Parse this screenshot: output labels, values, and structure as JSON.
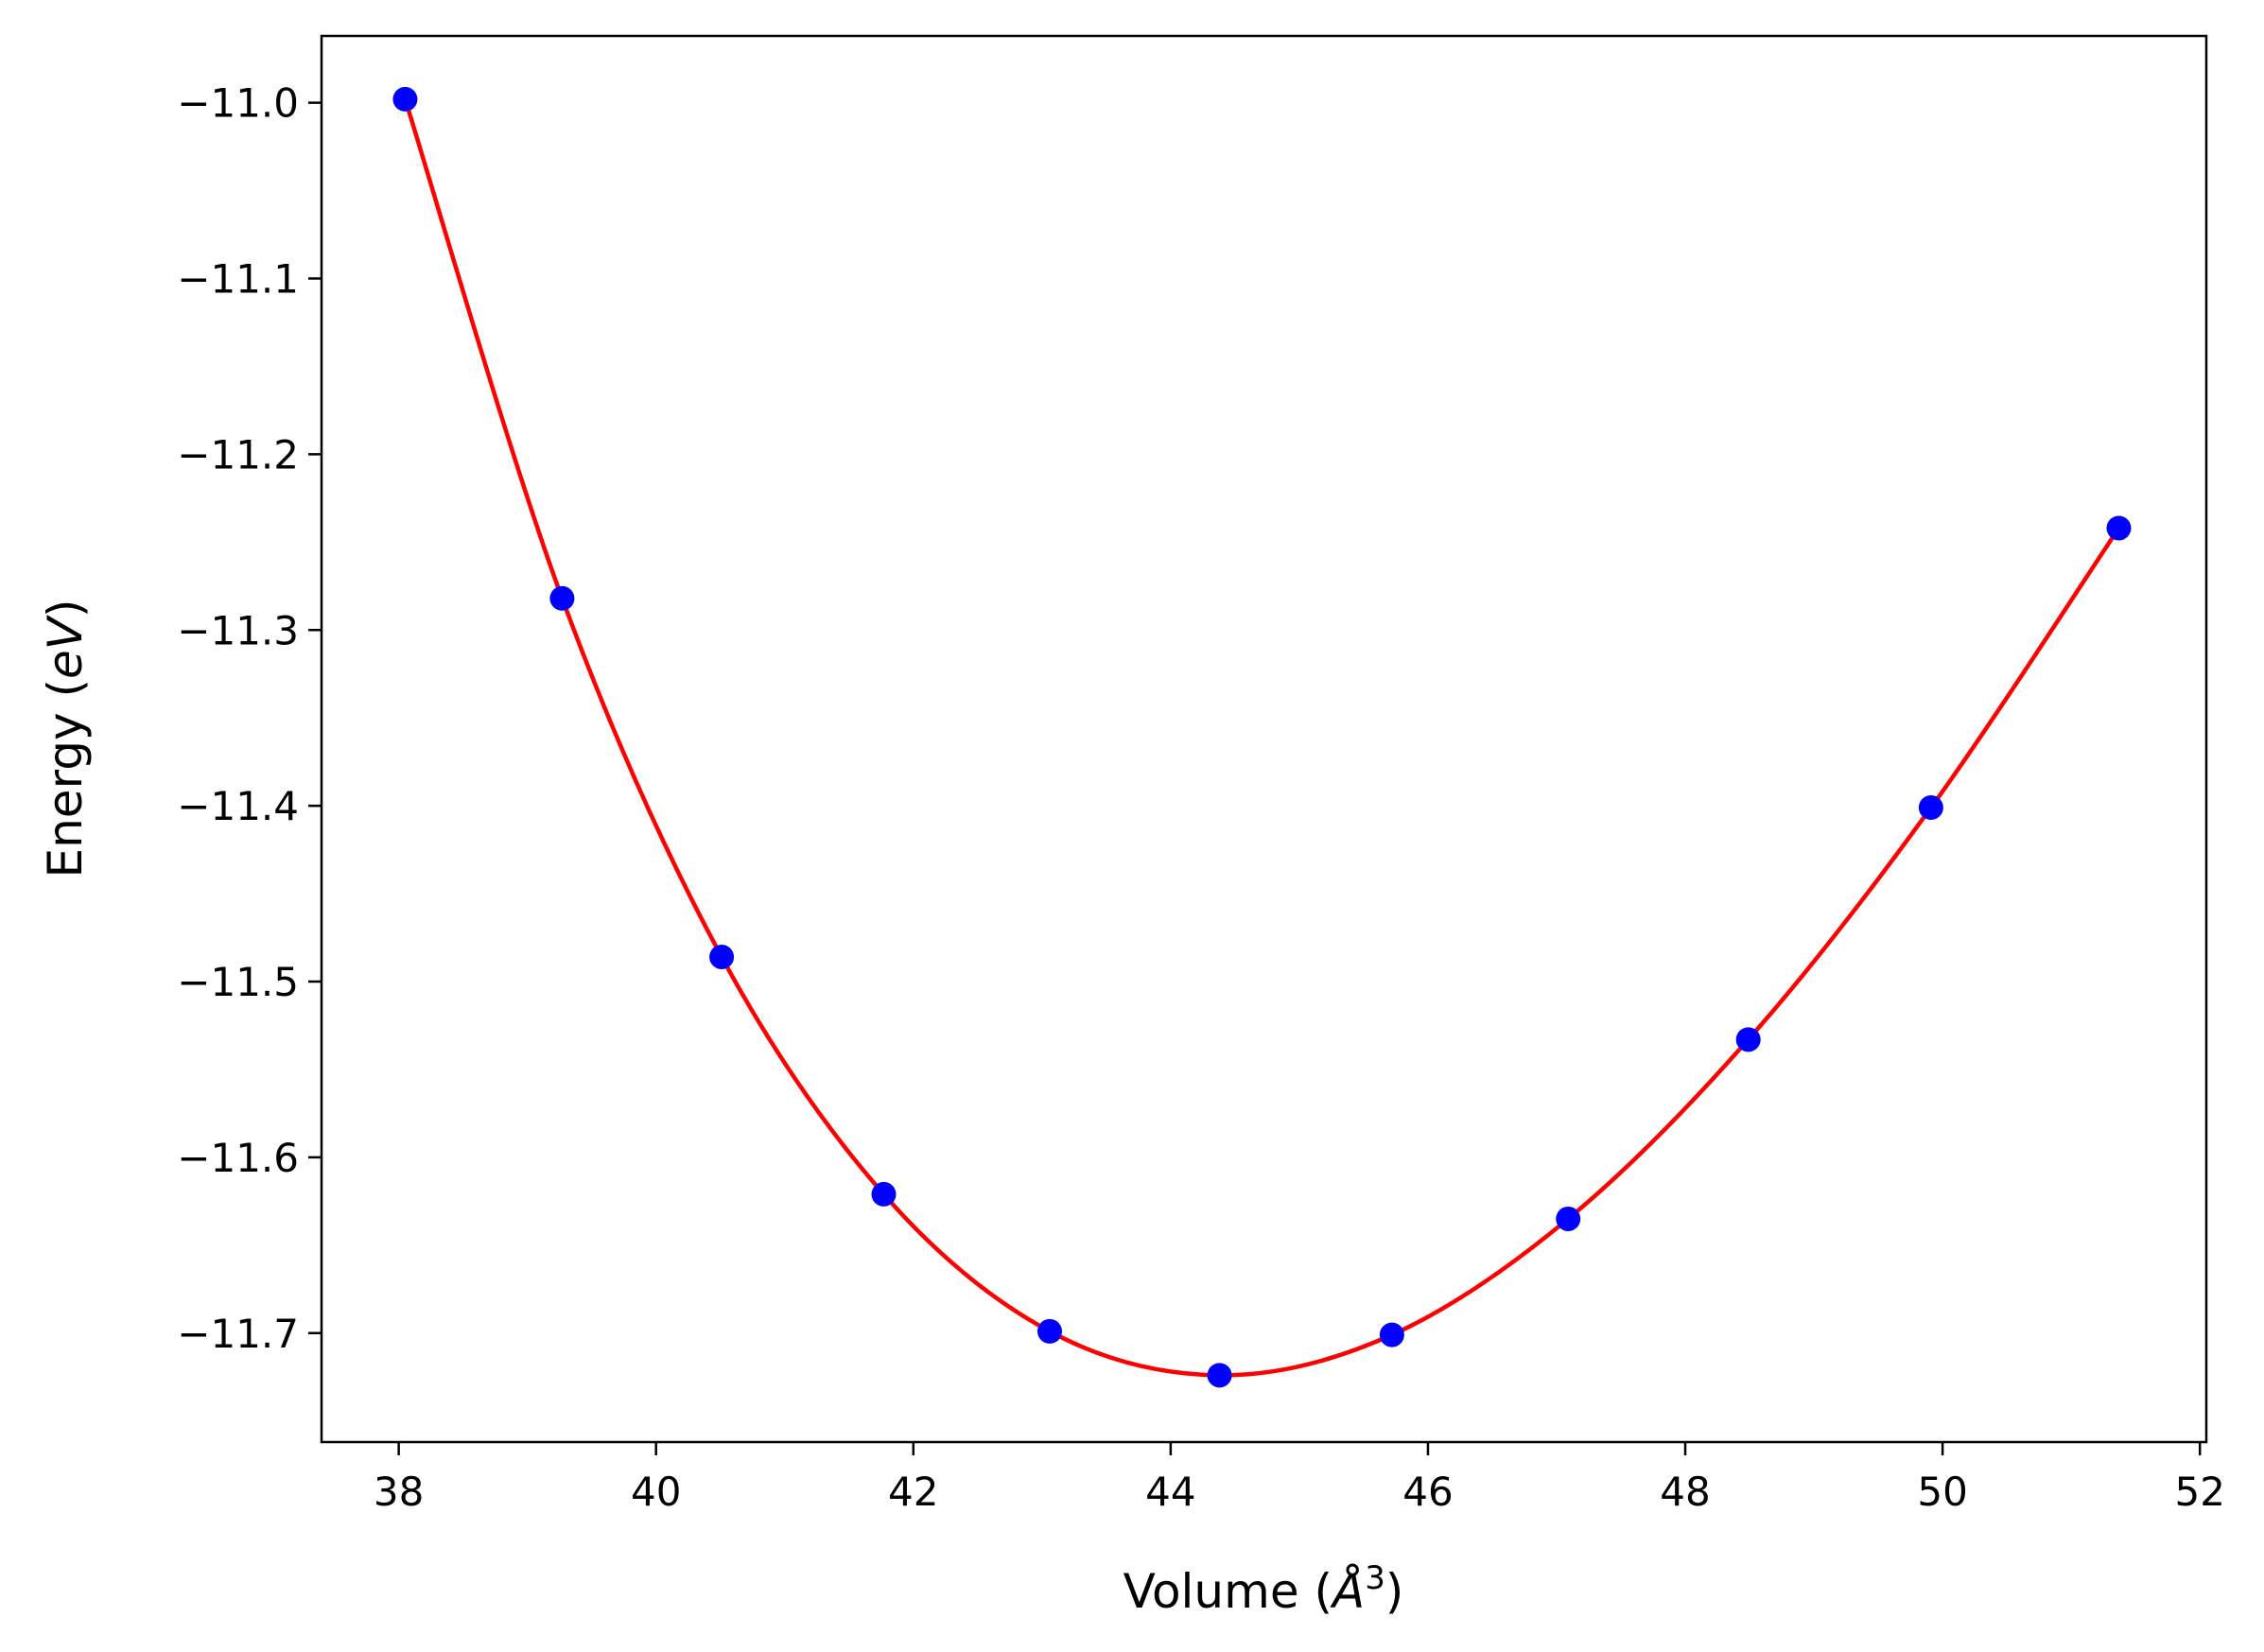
{
  "chart_data": {
    "type": "scatter",
    "title": "",
    "xlabel": "Volume (Å³)",
    "xlabel_parts": {
      "base": "Volume (",
      "symbol": "Å",
      "sup": "3",
      "close": ")"
    },
    "ylabel": "Energy (eV)",
    "ylabel_parts": {
      "base": "Energy (",
      "symbol": "eV",
      "close": ")"
    },
    "xlim": [
      37.4,
      52.05
    ],
    "ylim": [
      -11.762,
      -10.962
    ],
    "xticks": [
      38,
      40,
      42,
      44,
      46,
      48,
      50,
      52
    ],
    "xtick_labels": [
      "38",
      "40",
      "42",
      "44",
      "46",
      "48",
      "50",
      "52"
    ],
    "yticks": [
      -11.0,
      -11.1,
      -11.2,
      -11.3,
      -11.4,
      -11.5,
      -11.6,
      -11.7
    ],
    "ytick_labels": [
      "−11.0",
      "−11.1",
      "−11.2",
      "−11.3",
      "−11.4",
      "−11.5",
      "−11.6",
      "−11.7"
    ],
    "grid": false,
    "legend": "none",
    "series": [
      {
        "kind": "points",
        "color": "#0000ff",
        "x": [
          38.05,
          39.27,
          40.51,
          41.77,
          43.06,
          44.38,
          45.72,
          47.09,
          48.49,
          49.91,
          51.37
        ],
        "y": [
          -10.998,
          -11.282,
          -11.486,
          -11.621,
          -11.699,
          -11.724,
          -11.701,
          -11.635,
          -11.533,
          -11.401,
          -11.242
        ]
      },
      {
        "kind": "fit-curve",
        "color": "#ff0000",
        "x": [
          38.05,
          39.27,
          40.51,
          41.77,
          43.06,
          44.38,
          45.72,
          47.09,
          48.49,
          49.91,
          51.37
        ],
        "y": [
          -10.998,
          -11.282,
          -11.486,
          -11.621,
          -11.699,
          -11.724,
          -11.701,
          -11.635,
          -11.533,
          -11.401,
          -11.242
        ]
      }
    ]
  }
}
